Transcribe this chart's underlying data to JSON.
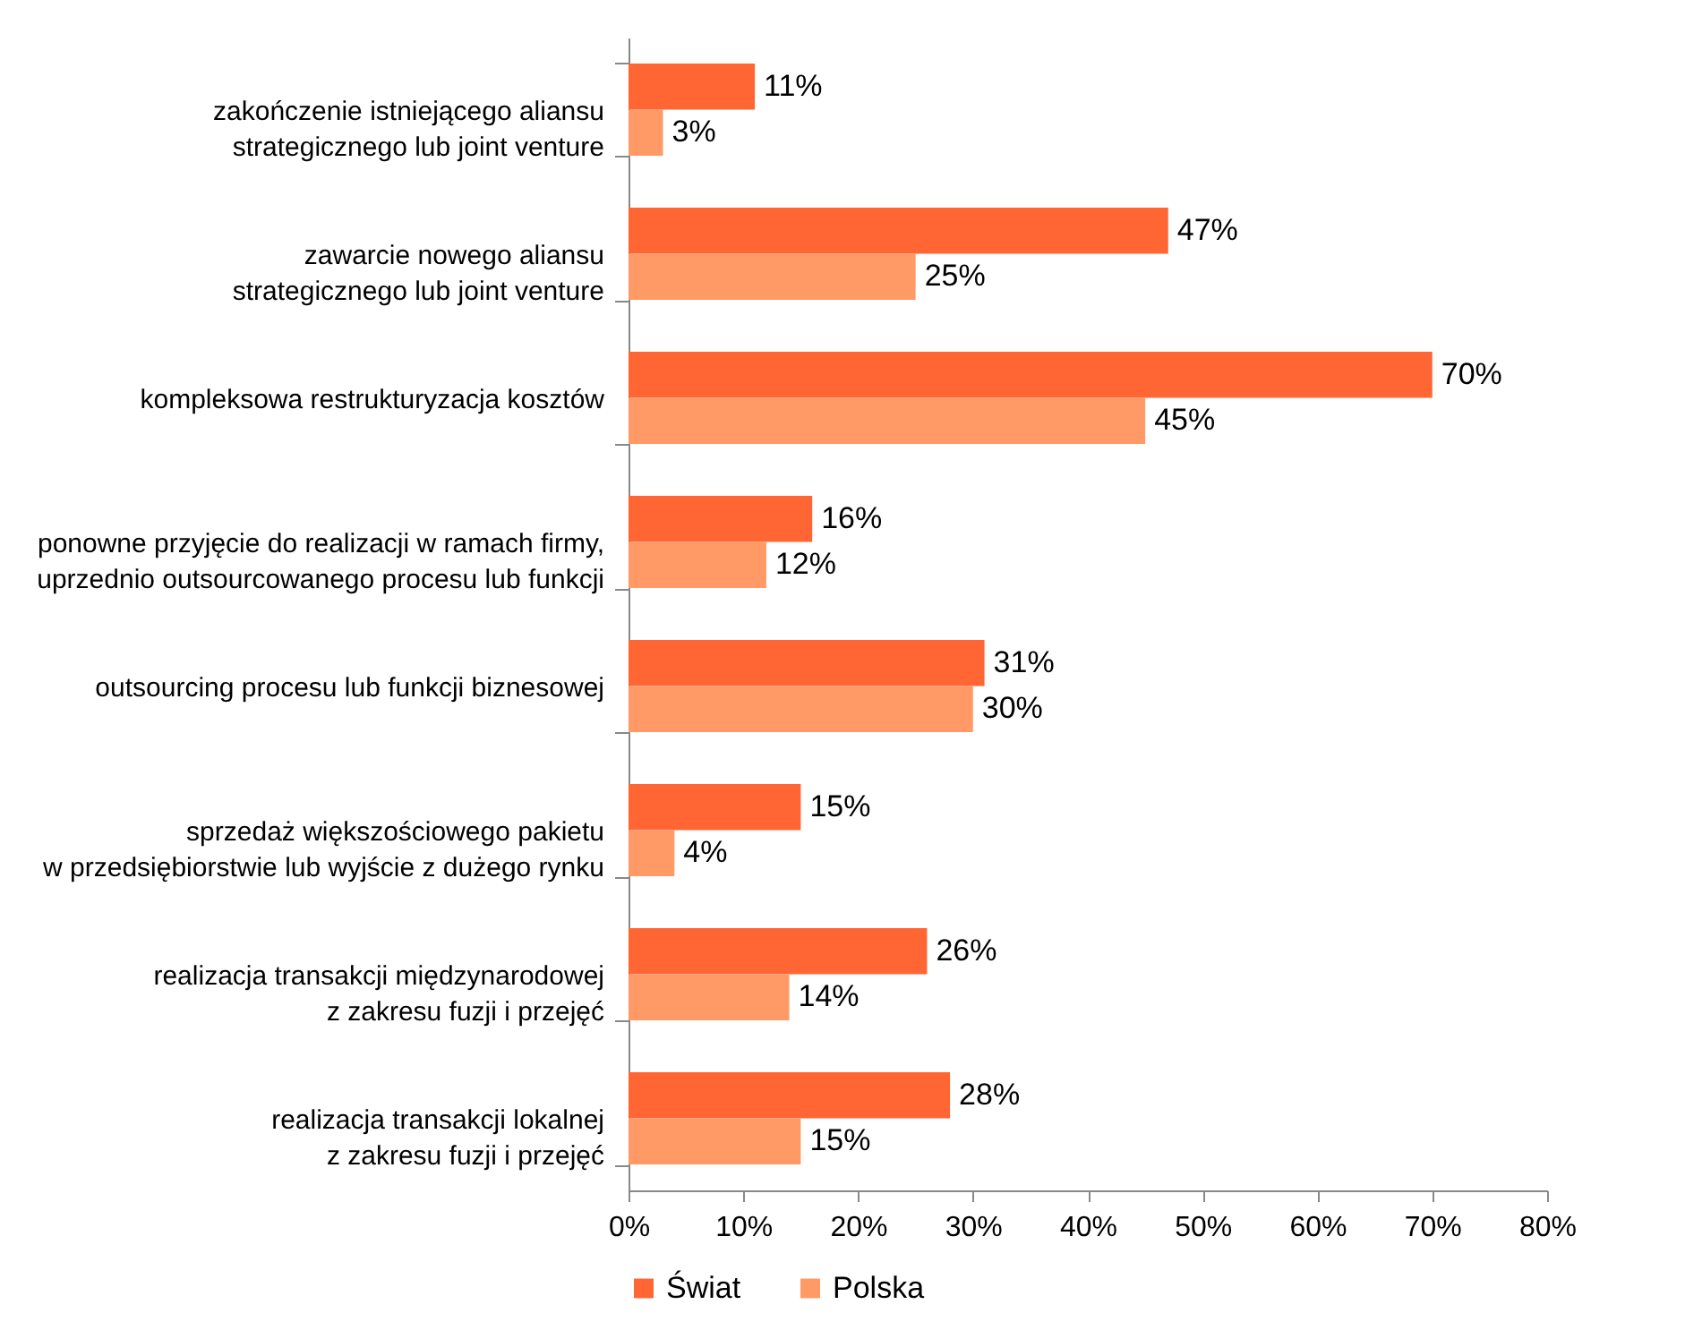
{
  "chart_data": {
    "type": "bar",
    "orientation": "horizontal",
    "categories": [
      "zakończenie istniejącego aliansu\nstrategicznego lub joint venture",
      "zawarcie nowego aliansu\nstrategicznego lub joint venture",
      "kompleksowa restrukturyzacja kosztów",
      "ponowne przyjęcie do realizacji w ramach firmy,\nuprzednio outsourcowanego procesu lub funkcji",
      "outsourcing procesu lub funkcji biznesowej",
      "sprzedaż większościowego pakietu\nw przedsiębiorstwie lub wyjście z dużego rynku",
      "realizacja transakcji międzynarodowej\nz zakresu fuzji i przejęć",
      "realizacja transakcji lokalnej\nz zakresu fuzji i przejęć"
    ],
    "series": [
      {
        "name": "Świat",
        "color": "#ff6633",
        "values": [
          11,
          47,
          70,
          16,
          31,
          15,
          26,
          28
        ],
        "value_labels": [
          "11%",
          "47%",
          "70%",
          "16%",
          "31%",
          "15%",
          "26%",
          "28%"
        ]
      },
      {
        "name": "Polska",
        "color": "#ff9966",
        "values": [
          3,
          25,
          45,
          12,
          30,
          4,
          14,
          15
        ],
        "value_labels": [
          "3%",
          "25%",
          "45%",
          "12%",
          "30%",
          "4%",
          "14%",
          "15%"
        ]
      }
    ],
    "xlim": [
      0,
      80
    ],
    "xticks": [
      {
        "value": 0,
        "label": "0%"
      },
      {
        "value": 10,
        "label": "10%"
      },
      {
        "value": 20,
        "label": "20%"
      },
      {
        "value": 30,
        "label": "30%"
      },
      {
        "value": 40,
        "label": "40%"
      },
      {
        "value": 50,
        "label": "50%"
      },
      {
        "value": 60,
        "label": "60%"
      },
      {
        "value": 70,
        "label": "70%"
      },
      {
        "value": 80,
        "label": "80%"
      }
    ],
    "grid": false,
    "legend": "bottom"
  }
}
